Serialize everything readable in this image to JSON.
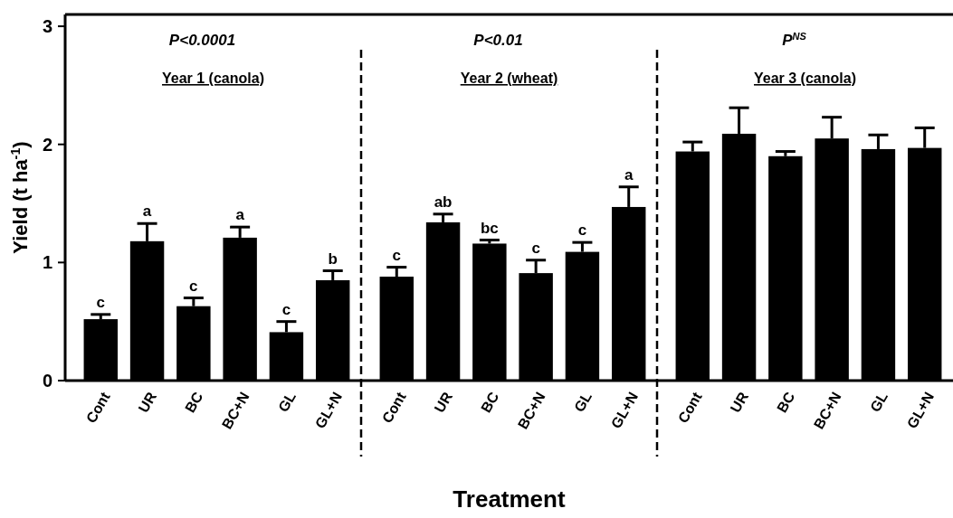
{
  "chart_data": [
    {
      "type": "bar",
      "title": "P<0.0001",
      "subtitle": "Year 1 (canola)",
      "ylabel": "Yield (t ha$^{-1}$)",
      "categories": [
        "Cont",
        "UR",
        "BC",
        "BC+N",
        "GL",
        "GL+N"
      ],
      "color": "#000000",
      "values": [
        0.52,
        1.18,
        0.63,
        1.21,
        0.41,
        0.85
      ],
      "errors": [
        0.04,
        0.15,
        0.07,
        0.09,
        0.09,
        0.08
      ],
      "ylim": [
        0,
        3.1
      ],
      "yticks": [
        0,
        1,
        2,
        3
      ],
      "annotations": [
        {
          "text": "c",
          "x": "Cont",
          "y": 0.56
        },
        {
          "text": "a",
          "x": "UR",
          "y": 1.33
        },
        {
          "text": "c",
          "x": "BC",
          "y": 0.7
        },
        {
          "text": "a",
          "x": "BC+N",
          "y": 1.3
        },
        {
          "text": "c",
          "x": "GL",
          "y": 0.5
        },
        {
          "text": "b",
          "x": "GL+N",
          "y": 0.93
        }
      ]
    },
    {
      "type": "bar",
      "title": "P<0.01",
      "subtitle": "Year 2 (wheat)",
      "xlabel": "Treatment",
      "categories": [
        "Cont",
        "UR",
        "BC",
        "BC+N",
        "GL",
        "GL+N"
      ],
      "color": "#000000",
      "values": [
        0.88,
        1.34,
        1.16,
        0.91,
        1.09,
        1.47
      ],
      "errors": [
        0.08,
        0.07,
        0.03,
        0.11,
        0.08,
        0.17
      ],
      "ylim": [
        0,
        3.1
      ],
      "tick_labels": "x",
      "annotations": [
        {
          "text": "c",
          "x": "Cont",
          "y": 0.96
        },
        {
          "text": "ab",
          "x": "UR",
          "y": 1.41
        },
        {
          "text": "bc",
          "x": "BC",
          "y": 1.19
        },
        {
          "text": "c",
          "x": "BC+N",
          "y": 1.02
        },
        {
          "text": "c",
          "x": "GL",
          "y": 1.17
        },
        {
          "text": "a",
          "x": "GL+N",
          "y": 1.64
        }
      ]
    },
    {
      "type": "bar",
      "title": "P$^{NS}$",
      "subtitle": "Year 3 (canola)",
      "categories": [
        "Cont",
        "UR",
        "BC",
        "BC+N",
        "GL",
        "GL+N"
      ],
      "color": "#000000",
      "values": [
        1.94,
        2.09,
        1.9,
        2.05,
        1.96,
        1.97
      ],
      "errors": [
        0.08,
        0.22,
        0.04,
        0.18,
        0.12,
        0.17
      ],
      "ylim": [
        0,
        3.1
      ],
      "tick_labels": "x"
    }
  ]
}
